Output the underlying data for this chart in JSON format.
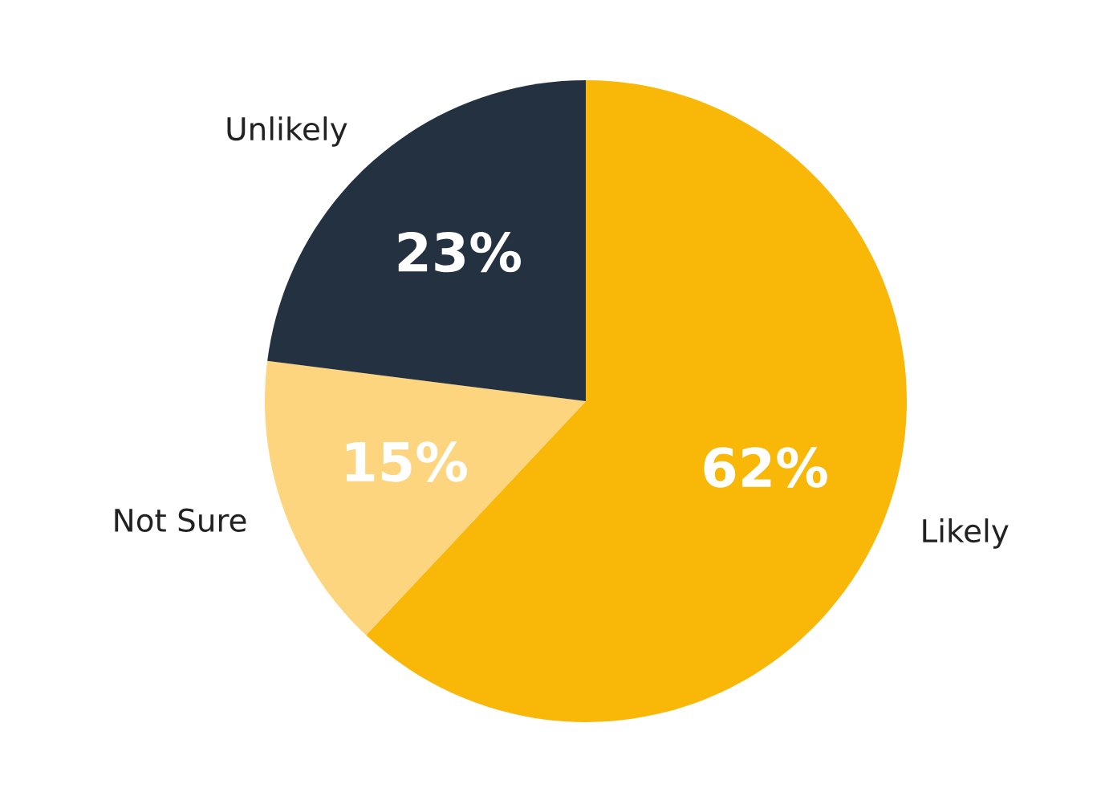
{
  "chart_data": {
    "type": "pie",
    "categories": [
      "Likely",
      "Not Sure",
      "Unlikely"
    ],
    "values": [
      62,
      15,
      23
    ],
    "colors": [
      "#f9b707",
      "#fdd57f",
      "#233140"
    ],
    "value_labels": [
      "62%",
      "15%",
      "23%"
    ],
    "legend": false
  }
}
